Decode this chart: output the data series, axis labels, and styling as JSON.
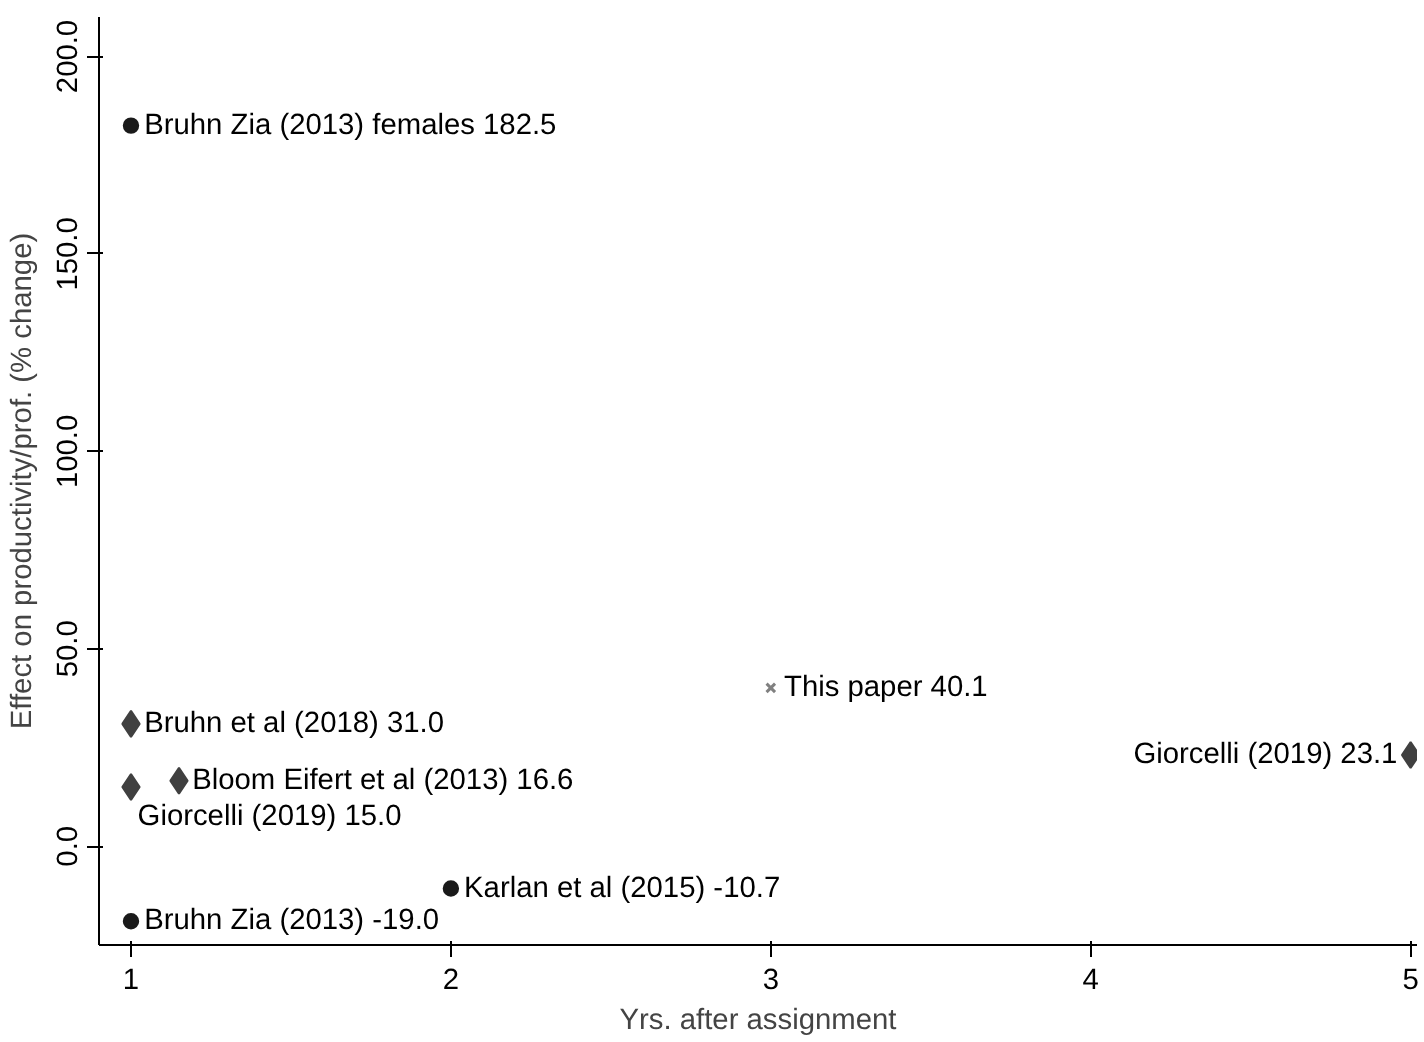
{
  "chart_data": {
    "type": "scatter",
    "xlabel": "Yrs. after assignment",
    "ylabel": "Effect on productivity/prof. (% change)",
    "xlim": [
      0.9,
      5.02
    ],
    "ylim": [
      -25,
      210
    ],
    "xticks": [
      1,
      2,
      3,
      4,
      5
    ],
    "yticks": [
      {
        "value": 0,
        "label": "0.0"
      },
      {
        "value": 50,
        "label": "50.0"
      },
      {
        "value": 100,
        "label": "100.0"
      },
      {
        "value": 150,
        "label": "150.0"
      },
      {
        "value": 200,
        "label": "200.0"
      }
    ],
    "grid": false,
    "series": [
      {
        "marker": "circle",
        "color": "#1a1a1a",
        "x": [
          1
        ],
        "values": [
          182.5
        ],
        "value_labels": [
          "Bruhn Zia (2013) females 182.5"
        ]
      },
      {
        "marker": "circle",
        "color": "#1a1a1a",
        "x": [
          1,
          2
        ],
        "values": [
          -19.0,
          -10.7
        ],
        "value_labels": [
          "Bruhn Zia (2013) -19.0",
          "Karlan et al (2015) -10.7"
        ]
      },
      {
        "marker": "diamond",
        "color": "#404040",
        "x": [
          1,
          1.15,
          1,
          5
        ],
        "values": [
          31.0,
          16.6,
          15.0,
          23.1
        ],
        "value_labels": [
          "Bruhn et al (2018) 31.0",
          "Bloom Eifert et al (2013) 16.6",
          "Giorcelli (2019) 15.0",
          "Giorcelli (2019) 23.1"
        ]
      },
      {
        "marker": "cross",
        "color": "#808080",
        "x": [
          3
        ],
        "values": [
          40.1
        ],
        "value_labels": [
          "This paper 40.1"
        ]
      }
    ]
  }
}
